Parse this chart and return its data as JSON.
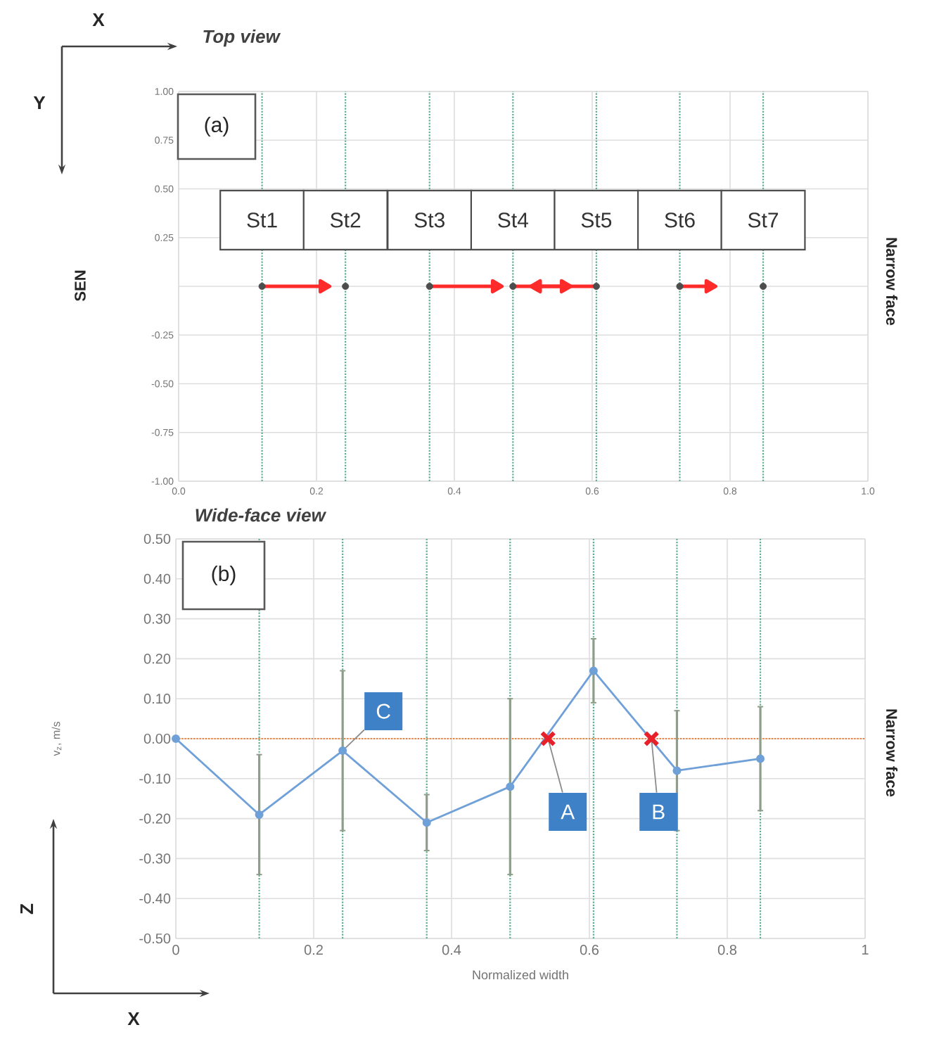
{
  "chart_data": [
    {
      "type": "scatter",
      "title": "Top view",
      "xlim": [
        0,
        1
      ],
      "ylim": [
        -1,
        1
      ],
      "xticks": [
        {
          "value": 0,
          "label": "0.0"
        },
        0.2,
        0.4,
        0.6,
        0.8,
        {
          "value": 1,
          "label": "1.0"
        }
      ],
      "yticks": [
        {
          "value": -1,
          "label": "-1.00"
        },
        {
          "value": -0.75,
          "label": "-0.75"
        },
        {
          "value": -0.5,
          "label": "-0.50"
        },
        {
          "value": -0.25,
          "label": "-0.25"
        },
        {
          "value": 0,
          "label": null
        },
        {
          "value": 0.25,
          "label": "0.25"
        },
        {
          "value": 0.5,
          "label": "0.50"
        },
        {
          "value": 0.75,
          "label": "0.75"
        },
        {
          "value": 1,
          "label": "1.00"
        }
      ],
      "grid": true,
      "series": [
        {
          "type": "line",
          "color": "#ff2a2a",
          "marker": "triangle",
          "x": [
            0.121,
            0.21
          ],
          "values": [
            0,
            0
          ]
        },
        {
          "type": "line",
          "color": "#ff2a2a",
          "marker": "triangle",
          "x": [
            0.364,
            0.46
          ],
          "values": [
            0,
            0
          ]
        },
        {
          "type": "line",
          "color": "#ff2a2a",
          "marker": "triangle",
          "x": [
            0.485,
            0.56
          ],
          "values": [
            0,
            0
          ]
        },
        {
          "type": "line",
          "color": "#ff2a2a",
          "marker": "triangle",
          "x": [
            0.606,
            0.52
          ],
          "values": [
            0,
            0
          ]
        },
        {
          "type": "line",
          "color": "#ff2a2a",
          "marker": "triangle",
          "x": [
            0.727,
            0.77
          ],
          "values": [
            0,
            0
          ]
        },
        {
          "color": "#4d4d4d",
          "marker": "circle",
          "x": [
            0.121,
            0.242,
            0.364,
            0.485,
            0.606,
            0.727,
            0.848
          ],
          "values": [
            0,
            0,
            0,
            0,
            0,
            0,
            0
          ]
        }
      ],
      "ref_lines": [
        {
          "axis": "x",
          "value": 0.121,
          "label": "St1",
          "color": "#5fae8c",
          "line_style": "dotted"
        },
        {
          "axis": "x",
          "value": 0.242,
          "label": "St2",
          "color": "#5fae8c",
          "line_style": "dotted"
        },
        {
          "axis": "x",
          "value": 0.364,
          "label": "St3",
          "color": "#5fae8c",
          "line_style": "dotted"
        },
        {
          "axis": "x",
          "value": 0.485,
          "label": "St4",
          "color": "#5fae8c",
          "line_style": "dotted"
        },
        {
          "axis": "x",
          "value": 0.606,
          "label": "St5",
          "color": "#5fae8c",
          "line_style": "dotted"
        },
        {
          "axis": "x",
          "value": 0.727,
          "label": "St6",
          "color": "#5fae8c",
          "line_style": "dotted"
        },
        {
          "axis": "x",
          "value": 0.848,
          "label": "St7",
          "color": "#5fae8c",
          "line_style": "dotted"
        }
      ],
      "annotations": [
        "(a)",
        "SEN",
        "Narrow face",
        "X",
        "Y"
      ]
    },
    {
      "type": "line",
      "title": "Wide-face view",
      "xlabel": "Normalized width",
      "ylabel": "v$_{z}$, m/s",
      "xlim": [
        0,
        1
      ],
      "ylim": [
        -0.5,
        0.5
      ],
      "xticks": [
        0,
        0.2,
        0.4,
        0.6,
        0.8,
        1
      ],
      "yticks": [
        {
          "value": -0.5,
          "label": "-0.50"
        },
        {
          "value": -0.4,
          "label": "-0.40"
        },
        {
          "value": -0.3,
          "label": "-0.30"
        },
        {
          "value": -0.2,
          "label": "-0.20"
        },
        {
          "value": -0.1,
          "label": "-0.10"
        },
        {
          "value": 0,
          "label": "0.00"
        },
        {
          "value": 0.1,
          "label": "0.10"
        },
        {
          "value": 0.2,
          "label": "0.20"
        },
        {
          "value": 0.3,
          "label": "0.30"
        },
        {
          "value": 0.4,
          "label": "0.40"
        },
        {
          "value": 0.5,
          "label": "0.50"
        }
      ],
      "grid": true,
      "series": [
        {
          "color": "#6fa0d8",
          "marker": "circle",
          "x": [
            0,
            0.121,
            0.242,
            0.364,
            0.485,
            0.606,
            0.727,
            0.848
          ],
          "values": [
            0,
            -0.19,
            -0.03,
            -0.21,
            -0.12,
            0.17,
            -0.08,
            -0.05
          ],
          "errors": [
            null,
            0.15,
            0.2,
            0.07,
            0.22,
            0.08,
            0.15,
            0.13
          ]
        },
        {
          "type": "scatter",
          "color": "#e8202a",
          "marker": "cross",
          "x": [
            0.54,
            0.69
          ],
          "values": [
            0,
            0
          ]
        }
      ],
      "ref_lines": [
        {
          "axis": "x",
          "value": 0.121,
          "color": "#5fae8c",
          "line_style": "dotted"
        },
        {
          "axis": "x",
          "value": 0.242,
          "color": "#5fae8c",
          "line_style": "dotted"
        },
        {
          "axis": "x",
          "value": 0.364,
          "color": "#5fae8c",
          "line_style": "dotted"
        },
        {
          "axis": "x",
          "value": 0.485,
          "color": "#5fae8c",
          "line_style": "dotted"
        },
        {
          "axis": "x",
          "value": 0.606,
          "color": "#5fae8c",
          "line_style": "dotted"
        },
        {
          "axis": "x",
          "value": 0.727,
          "color": "#5fae8c",
          "line_style": "dotted"
        },
        {
          "axis": "x",
          "value": 0.848,
          "color": "#5fae8c",
          "line_style": "dotted"
        },
        {
          "axis": "y",
          "value": 0,
          "color": "#e8823a",
          "line_style": "dotted"
        }
      ],
      "annotations": [
        "(b)",
        "Narrow face",
        "Z",
        "X",
        {
          "text": "A",
          "x": 0.54,
          "y": 0
        },
        {
          "text": "B",
          "x": 0.69,
          "y": 0
        },
        {
          "text": "C",
          "x": 0.242,
          "y": -0.03
        }
      ]
    }
  ]
}
